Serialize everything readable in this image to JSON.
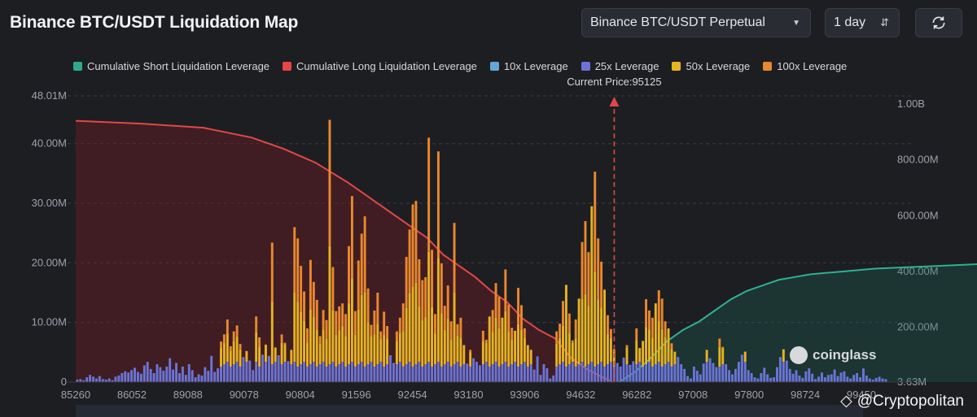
{
  "header": {
    "title": "Binance BTC/USDT Liquidation Map",
    "market_select": "Binance BTC/USDT Perpetual",
    "period_select": "1 day",
    "refresh_icon": "refresh-icon"
  },
  "legend": [
    {
      "label": "Cumulative Short Liquidation Leverage",
      "color": "#2ea98c"
    },
    {
      "label": "Cumulative Long Liquidation Leverage",
      "color": "#e54646"
    },
    {
      "label": "10x Leverage",
      "color": "#63a7d8"
    },
    {
      "label": "25x Leverage",
      "color": "#6b74d6"
    },
    {
      "label": "50x Leverage",
      "color": "#e6b323"
    },
    {
      "label": "100x Leverage",
      "color": "#e8882f"
    }
  ],
  "current_price_label": "Current Price:95125",
  "coinglass_label": "coinglass",
  "watermark": "@Cryptopolitan",
  "chart_data": {
    "type": "bar",
    "current_price": 95125,
    "x_ticks": [
      "85260",
      "86052",
      "89088",
      "90078",
      "90804",
      "91596",
      "92454",
      "93180",
      "93906",
      "94632",
      "96282",
      "97008",
      "97800",
      "98724",
      "99450"
    ],
    "left_axis": {
      "ticks": [
        "0",
        "10.00M",
        "20.00M",
        "30.00M",
        "40.00M",
        "48.01M"
      ],
      "max": 48.01
    },
    "right_axis": {
      "ticks": [
        "3.63M",
        "200.00M",
        "400.00M",
        "600.00M",
        "800.00M",
        "1.00B"
      ]
    },
    "cumulative_long": {
      "name": "Cumulative Long Liquidation Leverage",
      "points_x_index": [
        0,
        20,
        40,
        55,
        65,
        75,
        85,
        95,
        105,
        110,
        115,
        120,
        125,
        130,
        135,
        140,
        145,
        150,
        155,
        160,
        165,
        168
      ],
      "values_M": [
        940,
        930,
        915,
        880,
        840,
        790,
        720,
        640,
        560,
        520,
        460,
        420,
        380,
        330,
        290,
        230,
        190,
        160,
        90,
        50,
        20,
        3.63
      ]
    },
    "cumulative_short": {
      "name": "Cumulative Short Liquidation Leverage",
      "points_x_index": [
        170,
        175,
        180,
        185,
        190,
        195,
        200,
        205,
        210,
        215,
        220,
        225,
        230,
        240,
        250,
        260,
        270,
        280,
        290,
        300
      ],
      "values_M": [
        3.63,
        40,
        90,
        150,
        190,
        220,
        260,
        300,
        330,
        350,
        370,
        380,
        390,
        400,
        410,
        415,
        420,
        425,
        430,
        435
      ]
    },
    "bars_M": [
      0.4,
      0.5,
      0.3,
      0.8,
      1.2,
      0.9,
      0.6,
      1.0,
      0.5,
      0.4,
      0.6,
      0.3,
      0.9,
      1.1,
      1.5,
      1.8,
      1.6,
      2.0,
      2.4,
      1.7,
      1.4,
      2.8,
      3.4,
      2.2,
      1.5,
      3.0,
      2.5,
      1.9,
      2.6,
      4.0,
      2.1,
      3.2,
      1.5,
      2.6,
      1.2,
      3.0,
      2.0,
      0.8,
      1.3,
      1.1,
      2.5,
      1.9,
      4.4,
      1.7,
      2.3,
      6.8,
      8.0,
      10.5,
      6.0,
      8.5,
      9.5,
      6.4,
      4.2,
      5.2,
      3.6,
      2.0,
      11.0,
      7.5,
      4.6,
      6.3,
      4.4,
      23.4,
      5.8,
      4.5,
      8.0,
      6.6,
      3.5,
      5.4,
      26.0,
      24.1,
      19.5,
      15.2,
      9.0,
      20.5,
      16.8,
      13.8,
      7.7,
      12.1,
      10.4,
      44.0,
      19.3,
      11.9,
      12.7,
      13.2,
      11.4,
      22.8,
      31.2,
      11.9,
      20.4,
      24.9,
      27.8,
      15.7,
      9.6,
      12.0,
      15.0,
      8.5,
      11.8,
      9.4,
      4.5,
      3.2,
      8.5,
      10.8,
      13.2,
      21.0,
      25.6,
      29.8,
      30.4,
      20.6,
      17.1,
      17.6,
      41.0,
      22.2,
      11.4,
      38.7,
      19.9,
      12.8,
      16.2,
      10.2,
      26.7,
      9.7,
      10.8,
      6.2,
      3.1,
      5.4,
      4.0,
      3.4,
      2.8,
      8.6,
      7.1,
      11.0,
      12.1,
      16.6,
      14.3,
      10.8,
      18.9,
      13.0,
      9.1,
      8.6,
      15.8,
      12.9,
      9.0,
      6.2,
      5.4,
      2.1,
      4.3,
      1.2,
      3.0,
      2.3,
      0.6,
      1.1,
      8.5,
      9.8,
      13.6,
      16.3,
      11.5,
      7.0,
      10.5,
      14.0,
      23.5,
      27.0,
      21.8,
      29.5,
      35.3,
      24.1,
      20.2,
      15.5,
      11.2,
      8.9,
      5.5,
      3.2,
      2.6,
      4.1,
      6.2,
      2.9,
      3.5,
      9.0,
      5.7,
      6.9,
      13.9,
      12.0,
      10.8,
      13.2,
      15.4,
      14.0,
      10.2,
      9.0,
      6.5,
      5.1,
      4.2,
      3.0,
      2.2,
      1.0,
      0.6,
      2.6,
      1.9,
      1.3,
      3.1,
      5.4,
      4.0,
      3.2,
      2.5,
      7.3,
      5.9,
      3.0,
      2.0,
      1.3,
      2.2,
      3.4,
      4.6,
      5.1,
      2.0,
      1.5,
      0.8,
      0.6,
      1.5,
      2.4,
      1.3,
      0.7,
      0.8,
      2.5,
      4.2,
      5.5,
      3.6,
      2.2,
      1.4,
      2.0,
      1.1,
      0.7,
      1.8,
      2.3,
      1.4,
      0.5,
      0.9,
      1.6,
      0.8,
      1.2,
      1.3,
      2.1,
      1.0,
      1.6,
      1.8,
      0.9,
      0.6,
      1.2,
      1.5,
      0.8,
      2.3,
      1.1,
      0.6,
      0.4,
      0.7,
      0.9,
      0.6,
      0.5
    ]
  }
}
